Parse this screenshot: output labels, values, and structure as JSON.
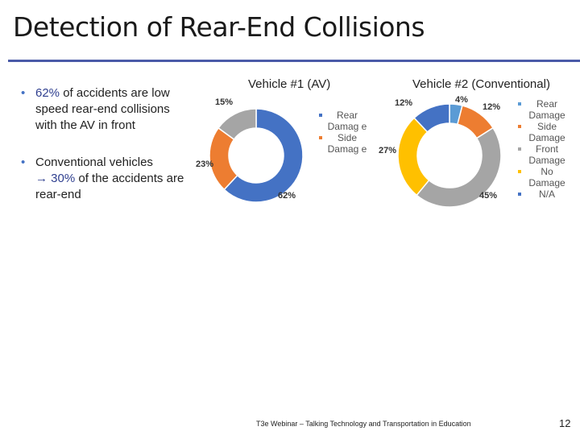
{
  "slide": {
    "title": "Detection of Rear-End Collisions",
    "bullets": [
      {
        "pre": "",
        "highlight": "62%",
        "post": " of accidents are low speed rear-end collisions with the AV in front"
      },
      {
        "pre": "Conventional vehicles ",
        "arrow": "→",
        "highlight": "30%",
        "post": " of the accidents are rear-end"
      }
    ],
    "footer": "T3e Webinar – Talking Technology and Transportation in Education",
    "page_number": "12"
  },
  "chart_data": [
    {
      "type": "pie",
      "title": "Vehicle #1 (AV)",
      "labels": [
        "Rear Damag e",
        "Side Damag e",
        ""
      ],
      "values": [
        62,
        23,
        15
      ],
      "data_labels": [
        "62%",
        "23%",
        "15%"
      ],
      "colors": [
        "#4472c4",
        "#ed7d31",
        "#a5a5a5"
      ],
      "legend": [
        "Rear Damag e",
        "Side Damag e"
      ],
      "legend_position": "right"
    },
    {
      "type": "pie",
      "title": "Vehicle #2 (Conventional)",
      "labels": [
        "Rear Damage",
        "Side Damage",
        "Front Damage",
        "No Damage",
        "N/A"
      ],
      "values": [
        4,
        12,
        45,
        27,
        12
      ],
      "data_labels": [
        "4%",
        "12%",
        "45%",
        "27%",
        "12%"
      ],
      "colors": [
        "#5b9bd5",
        "#ed7d31",
        "#a5a5a5",
        "#ffc000",
        "#4472c4"
      ],
      "legend": [
        "Rear Damage",
        "Side Damage",
        "Front Damage",
        "No Damage",
        "N/A"
      ],
      "legend_position": "right"
    }
  ]
}
